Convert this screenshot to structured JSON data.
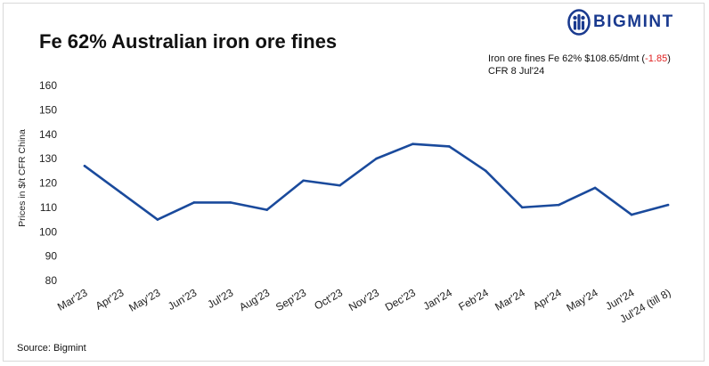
{
  "brand": {
    "name": "BIGMINT",
    "color": "#1a3a8f"
  },
  "chart_data": {
    "type": "line",
    "title": "Fe 62% Australian iron ore fines",
    "ylabel": "Prices in $/t CFR China",
    "xlabel": "",
    "ylim": [
      80,
      160
    ],
    "yticks": [
      80,
      90,
      100,
      110,
      120,
      130,
      140,
      150,
      160
    ],
    "grid": false,
    "categories": [
      "Mar'23",
      "Apr'23",
      "May'23",
      "Jun'23",
      "Jul'23",
      "Aug'23",
      "Sep'23",
      "Oct'23",
      "Nov'23",
      "Dec'23",
      "Jan'24",
      "Feb'24",
      "Mar'24",
      "Apr'24",
      "May'24",
      "Jun'24",
      "Jul'24 (till 8)"
    ],
    "series": [
      {
        "values": [
          127,
          116,
          105,
          112,
          112,
          109,
          121,
          119,
          130,
          136,
          135,
          125,
          110,
          111,
          118,
          107,
          111
        ],
        "color": "#1a4a9c"
      }
    ]
  },
  "annotation": {
    "line1_prefix": "Iron ore fines Fe 62% $108.65/dmt (",
    "change": "-1.85",
    "line1_suffix": ")",
    "line2": "CFR 8 Jul'24",
    "change_color": "#e02020"
  },
  "source": "Source: Bigmint"
}
